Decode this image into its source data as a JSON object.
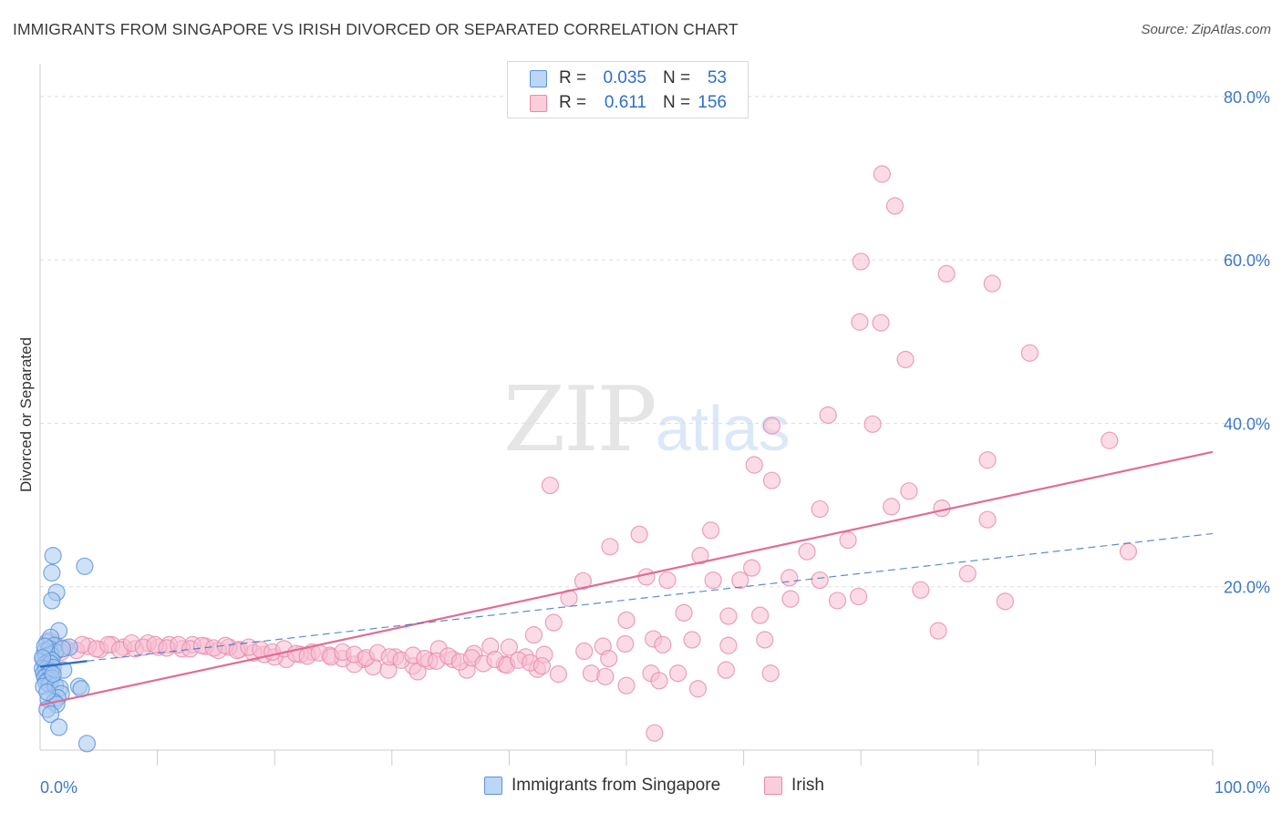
{
  "title": "IMMIGRANTS FROM SINGAPORE VS IRISH DIVORCED OR SEPARATED CORRELATION CHART",
  "source": "Source: ZipAtlas.com",
  "watermark": {
    "part1": "ZIP",
    "part2": "atlas"
  },
  "legend": {
    "rows": [
      {
        "r_label": "R =",
        "r_value": "0.035",
        "n_label": "N =",
        "n_value": "53"
      },
      {
        "r_label": "R =",
        "r_value": "0.611",
        "n_label": "N =",
        "n_value": "156"
      }
    ],
    "series_labels": [
      "Immigrants from Singapore",
      "Irish"
    ]
  },
  "colors": {
    "singapore_fill": "#a8c8f0",
    "singapore_stroke": "#5b93d8",
    "singapore_line": "#2f6fca",
    "irish_fill": "#f7c0d2",
    "irish_stroke": "#e98aab",
    "irish_line": "#e36b95",
    "axis_label": "#3d77c9",
    "grid": "#dddddd"
  },
  "chart_data": {
    "type": "scatter",
    "title": "IMMIGRANTS FROM SINGAPORE VS IRISH DIVORCED OR SEPARATED CORRELATION CHART",
    "xlabel": "",
    "ylabel": "Divorced or Separated",
    "xlim": [
      0,
      100
    ],
    "ylim": [
      0,
      84
    ],
    "x_tick_labels": [
      "0.0%",
      "100.0%"
    ],
    "y_ticks": [
      20,
      40,
      60,
      80
    ],
    "y_tick_labels": [
      "20.0%",
      "40.0%",
      "60.0%",
      "80.0%"
    ],
    "grid": "horizontal dashed",
    "legend_placement": "top-center and bottom",
    "series": [
      {
        "name": "Immigrants from Singapore",
        "R": 0.035,
        "N": 53,
        "trend": {
          "x0": 0,
          "y0": 10.2,
          "x1": 4,
          "y1": 10.9,
          "extended_x1": 100,
          "extended_y1": 26.5
        },
        "points": [
          [
            1.1,
            23.8
          ],
          [
            1.0,
            21.7
          ],
          [
            3.8,
            22.5
          ],
          [
            1.4,
            19.3
          ],
          [
            1.0,
            18.3
          ],
          [
            1.6,
            14.6
          ],
          [
            0.6,
            13.2
          ],
          [
            0.9,
            13.8
          ],
          [
            1.2,
            12.8
          ],
          [
            0.4,
            12.1
          ],
          [
            0.8,
            12.4
          ],
          [
            1.3,
            12.0
          ],
          [
            0.5,
            11.5
          ],
          [
            0.9,
            11.7
          ],
          [
            0.3,
            11.1
          ],
          [
            0.7,
            10.8
          ],
          [
            1.0,
            11.0
          ],
          [
            0.4,
            10.5
          ],
          [
            0.6,
            10.2
          ],
          [
            0.9,
            10.6
          ],
          [
            0.2,
            10.0
          ],
          [
            0.5,
            9.9
          ],
          [
            0.8,
            9.7
          ],
          [
            1.1,
            10.1
          ],
          [
            2.0,
            9.8
          ],
          [
            0.3,
            9.4
          ],
          [
            0.6,
            9.2
          ],
          [
            0.9,
            9.5
          ],
          [
            0.4,
            8.9
          ],
          [
            0.7,
            8.6
          ],
          [
            1.0,
            8.8
          ],
          [
            0.5,
            8.3
          ],
          [
            0.8,
            8.0
          ],
          [
            0.3,
            7.8
          ],
          [
            1.3,
            7.9
          ],
          [
            1.7,
            7.6
          ],
          [
            3.3,
            7.8
          ],
          [
            3.5,
            7.5
          ],
          [
            1.8,
            6.9
          ],
          [
            1.5,
            6.4
          ],
          [
            0.7,
            6.2
          ],
          [
            1.2,
            5.9
          ],
          [
            1.4,
            5.6
          ],
          [
            0.6,
            5.0
          ],
          [
            0.9,
            4.4
          ],
          [
            1.6,
            2.8
          ],
          [
            4.0,
            0.8
          ],
          [
            2.5,
            12.6
          ],
          [
            0.4,
            12.7
          ],
          [
            1.9,
            12.4
          ],
          [
            0.2,
            11.3
          ],
          [
            1.1,
            9.3
          ],
          [
            0.6,
            7.1
          ]
        ]
      },
      {
        "name": "Irish",
        "R": 0.611,
        "N": 156,
        "trend": {
          "x0": 0,
          "y0": 5.5,
          "x1": 100,
          "y1": 36.5
        },
        "points": [
          [
            71.8,
            70.5
          ],
          [
            72.9,
            66.6
          ],
          [
            70.0,
            59.8
          ],
          [
            77.3,
            58.3
          ],
          [
            81.2,
            57.1
          ],
          [
            69.9,
            52.4
          ],
          [
            71.7,
            52.3
          ],
          [
            73.8,
            47.8
          ],
          [
            84.4,
            48.6
          ],
          [
            67.2,
            41.0
          ],
          [
            62.4,
            39.7
          ],
          [
            71.0,
            39.9
          ],
          [
            91.2,
            37.9
          ],
          [
            80.8,
            35.5
          ],
          [
            60.9,
            34.9
          ],
          [
            62.4,
            33.0
          ],
          [
            43.5,
            32.4
          ],
          [
            74.1,
            31.7
          ],
          [
            72.6,
            29.8
          ],
          [
            76.9,
            29.6
          ],
          [
            66.5,
            29.5
          ],
          [
            80.8,
            28.2
          ],
          [
            57.2,
            26.9
          ],
          [
            51.1,
            26.4
          ],
          [
            68.9,
            25.7
          ],
          [
            48.6,
            24.9
          ],
          [
            65.4,
            24.3
          ],
          [
            92.8,
            24.3
          ],
          [
            56.3,
            23.8
          ],
          [
            60.7,
            22.3
          ],
          [
            79.1,
            21.6
          ],
          [
            51.7,
            21.2
          ],
          [
            63.9,
            21.1
          ],
          [
            53.5,
            20.8
          ],
          [
            57.4,
            20.8
          ],
          [
            59.7,
            20.8
          ],
          [
            66.5,
            20.8
          ],
          [
            46.3,
            20.7
          ],
          [
            75.1,
            19.6
          ],
          [
            45.1,
            18.6
          ],
          [
            69.8,
            18.8
          ],
          [
            68.0,
            18.3
          ],
          [
            64.0,
            18.5
          ],
          [
            82.3,
            18.2
          ],
          [
            43.8,
            15.6
          ],
          [
            50.0,
            15.9
          ],
          [
            54.9,
            16.8
          ],
          [
            58.7,
            16.4
          ],
          [
            61.4,
            16.5
          ],
          [
            76.6,
            14.6
          ],
          [
            42.1,
            14.1
          ],
          [
            52.3,
            13.6
          ],
          [
            55.6,
            13.5
          ],
          [
            61.8,
            13.5
          ],
          [
            49.9,
            13.0
          ],
          [
            48.0,
            12.7
          ],
          [
            53.1,
            12.9
          ],
          [
            58.7,
            12.8
          ],
          [
            34.0,
            12.4
          ],
          [
            38.4,
            12.7
          ],
          [
            40.0,
            12.6
          ],
          [
            43.0,
            11.7
          ],
          [
            46.4,
            12.1
          ],
          [
            48.5,
            11.2
          ],
          [
            37.0,
            11.8
          ],
          [
            41.4,
            11.4
          ],
          [
            35.2,
            11.1
          ],
          [
            33.2,
            10.9
          ],
          [
            30.3,
            11.4
          ],
          [
            31.8,
            10.3
          ],
          [
            27.6,
            11.1
          ],
          [
            26.8,
            10.5
          ],
          [
            28.4,
            10.2
          ],
          [
            29.7,
            9.8
          ],
          [
            32.2,
            9.6
          ],
          [
            36.4,
            9.8
          ],
          [
            39.6,
            10.5
          ],
          [
            42.4,
            9.9
          ],
          [
            44.2,
            9.3
          ],
          [
            47.0,
            9.4
          ],
          [
            48.2,
            9.0
          ],
          [
            52.1,
            9.4
          ],
          [
            54.4,
            9.4
          ],
          [
            58.5,
            9.8
          ],
          [
            62.3,
            9.4
          ],
          [
            50.0,
            7.9
          ],
          [
            52.8,
            8.5
          ],
          [
            56.1,
            7.5
          ],
          [
            52.4,
            2.1
          ],
          [
            23.2,
            12.0
          ],
          [
            24.7,
            11.6
          ],
          [
            25.8,
            11.2
          ],
          [
            22.2,
            11.7
          ],
          [
            21.0,
            11.1
          ],
          [
            20.0,
            11.4
          ],
          [
            19.1,
            11.7
          ],
          [
            18.2,
            11.9
          ],
          [
            17.0,
            12.3
          ],
          [
            16.1,
            12.6
          ],
          [
            15.2,
            12.2
          ],
          [
            14.1,
            12.7
          ],
          [
            13.0,
            12.9
          ],
          [
            12.1,
            12.4
          ],
          [
            11.0,
            12.9
          ],
          [
            10.1,
            12.6
          ],
          [
            9.2,
            13.1
          ],
          [
            8.1,
            12.4
          ],
          [
            7.1,
            12.6
          ],
          [
            6.1,
            12.9
          ],
          [
            5.1,
            12.3
          ],
          [
            4.1,
            12.7
          ],
          [
            3.1,
            12.2
          ],
          [
            2.1,
            12.5
          ],
          [
            1.3,
            12.9
          ],
          [
            0.8,
            13.4
          ],
          [
            1.8,
            12.0
          ],
          [
            3.6,
            12.9
          ],
          [
            4.8,
            12.4
          ],
          [
            5.8,
            12.9
          ],
          [
            6.8,
            12.3
          ],
          [
            7.8,
            13.1
          ],
          [
            8.8,
            12.6
          ],
          [
            9.8,
            12.9
          ],
          [
            10.8,
            12.5
          ],
          [
            11.8,
            12.9
          ],
          [
            12.8,
            12.4
          ],
          [
            13.8,
            12.8
          ],
          [
            14.8,
            12.5
          ],
          [
            15.8,
            12.8
          ],
          [
            16.8,
            12.2
          ],
          [
            17.8,
            12.6
          ],
          [
            18.8,
            12.3
          ],
          [
            19.8,
            12.0
          ],
          [
            20.8,
            12.4
          ],
          [
            21.8,
            11.8
          ],
          [
            22.8,
            11.5
          ],
          [
            23.8,
            11.9
          ],
          [
            24.8,
            11.4
          ],
          [
            25.8,
            12.0
          ],
          [
            26.8,
            11.7
          ],
          [
            27.8,
            11.3
          ],
          [
            28.8,
            11.9
          ],
          [
            29.8,
            11.4
          ],
          [
            30.8,
            11.0
          ],
          [
            31.8,
            11.6
          ],
          [
            32.8,
            11.2
          ],
          [
            33.8,
            10.9
          ],
          [
            34.8,
            11.5
          ],
          [
            35.8,
            10.8
          ],
          [
            36.8,
            11.3
          ],
          [
            37.8,
            10.6
          ],
          [
            38.8,
            11.1
          ],
          [
            39.8,
            10.4
          ],
          [
            40.8,
            11.0
          ],
          [
            41.8,
            10.7
          ],
          [
            42.8,
            10.3
          ]
        ]
      }
    ]
  }
}
